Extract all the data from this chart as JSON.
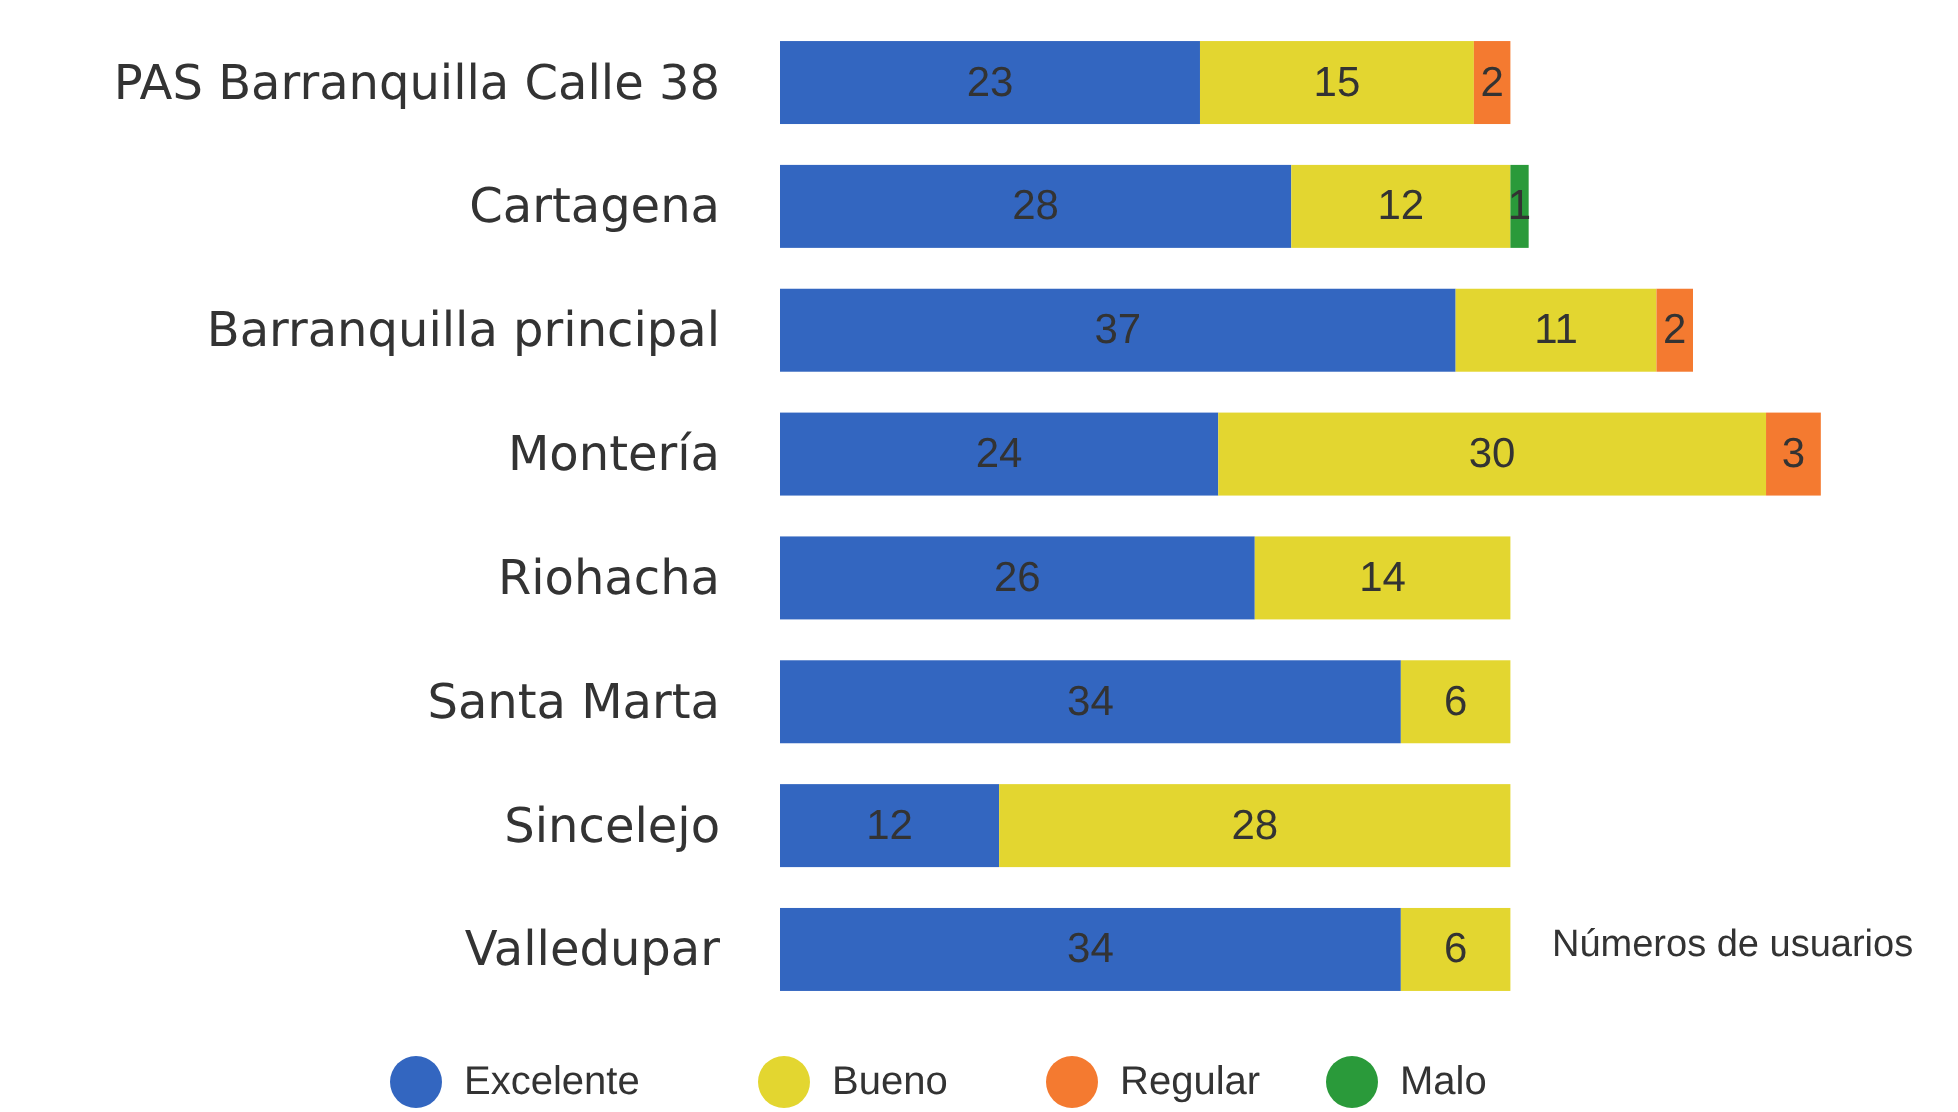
{
  "chart_data": {
    "type": "bar",
    "orientation": "horizontal",
    "stacked": true,
    "data_labels": true,
    "legend": "bottom",
    "categories": [
      "PAS Barranquilla Calle 38",
      "Cartagena",
      "Barranquilla principal",
      "Montería",
      "Riohacha",
      "Santa Marta",
      "Sincelejo",
      "Valledupar"
    ],
    "series": [
      {
        "name": "Excelente",
        "color": "#3366c0",
        "values": [
          23,
          28,
          37,
          24,
          26,
          34,
          12,
          34
        ]
      },
      {
        "name": "Bueno",
        "color": "#e3d630",
        "values": [
          15,
          12,
          11,
          30,
          14,
          6,
          28,
          6
        ]
      },
      {
        "name": "Regular",
        "color": "#f47a30",
        "values": [
          2,
          null,
          2,
          3,
          null,
          null,
          null,
          null
        ]
      },
      {
        "name": "Malo",
        "color": "#2a9a3a",
        "values": [
          null,
          1,
          null,
          null,
          null,
          null,
          null,
          null
        ]
      }
    ],
    "annotations": [
      "Números de usuarios"
    ]
  }
}
